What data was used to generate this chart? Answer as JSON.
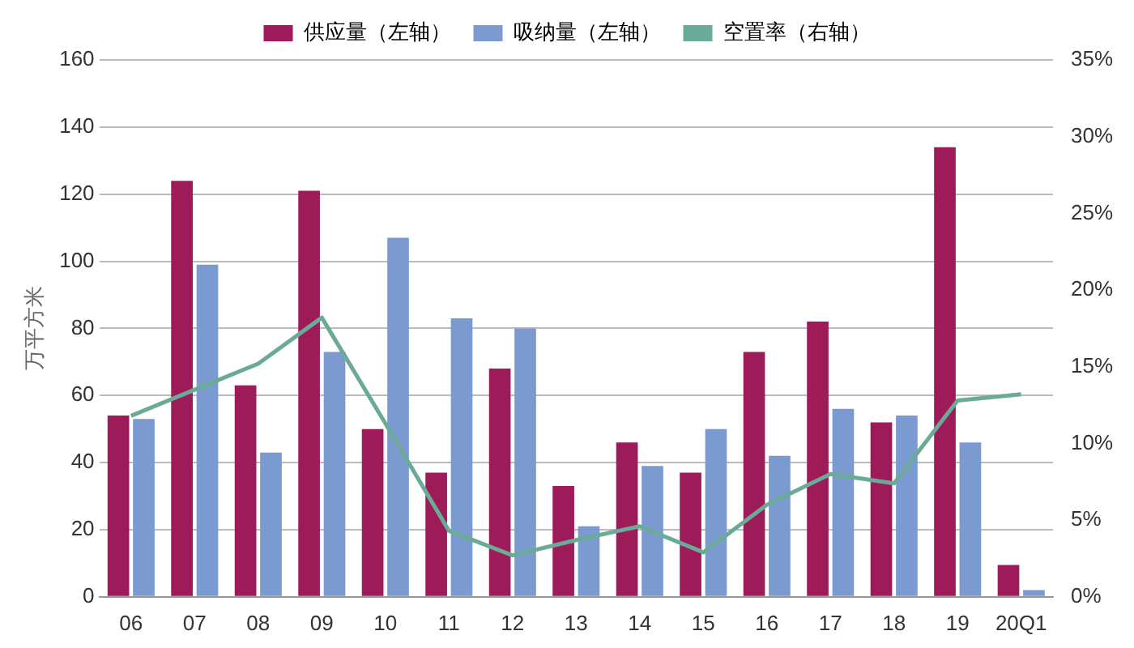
{
  "chart_data": {
    "type": "bar",
    "ylabel": "万平方米",
    "categories": [
      "06",
      "07",
      "08",
      "09",
      "10",
      "11",
      "12",
      "13",
      "14",
      "15",
      "16",
      "17",
      "18",
      "19",
      "20Q1"
    ],
    "series": [
      {
        "name": "供应量（左轴）",
        "color": "#9e1b5a",
        "values": [
          54,
          124,
          63,
          121,
          50,
          37,
          68,
          33,
          46,
          37,
          73,
          82,
          52,
          134,
          9.5
        ]
      },
      {
        "name": "吸纳量（左轴）",
        "color": "#7b9bd0",
        "values": [
          53,
          99,
          43,
          73,
          107,
          83,
          80,
          21,
          39,
          50,
          42,
          56,
          54,
          46,
          2
        ]
      },
      {
        "name": "空置率（右轴）",
        "type": "line",
        "axis": "y2",
        "color": "#6aaa96",
        "values": [
          11.8,
          13.5,
          15.2,
          18.2,
          11.3,
          4.3,
          2.7,
          3.7,
          4.6,
          2.9,
          6.0,
          8.0,
          7.4,
          12.8,
          13.2
        ]
      }
    ],
    "ylim": [
      0,
      160
    ],
    "yticks": [
      0,
      20,
      40,
      60,
      80,
      100,
      120,
      140,
      160
    ],
    "y2lim": [
      0,
      35
    ],
    "y2ticks": [
      {
        "value": 0,
        "label": "0%"
      },
      {
        "value": 5,
        "label": "5%"
      },
      {
        "value": 10,
        "label": "10%"
      },
      {
        "value": 15,
        "label": "15%"
      },
      {
        "value": 20,
        "label": "20%"
      },
      {
        "value": 25,
        "label": "25%"
      },
      {
        "value": 30,
        "label": "30%"
      },
      {
        "value": 35,
        "label": "35%"
      }
    ],
    "grid": "y",
    "legend": "top",
    "marker": "none"
  }
}
